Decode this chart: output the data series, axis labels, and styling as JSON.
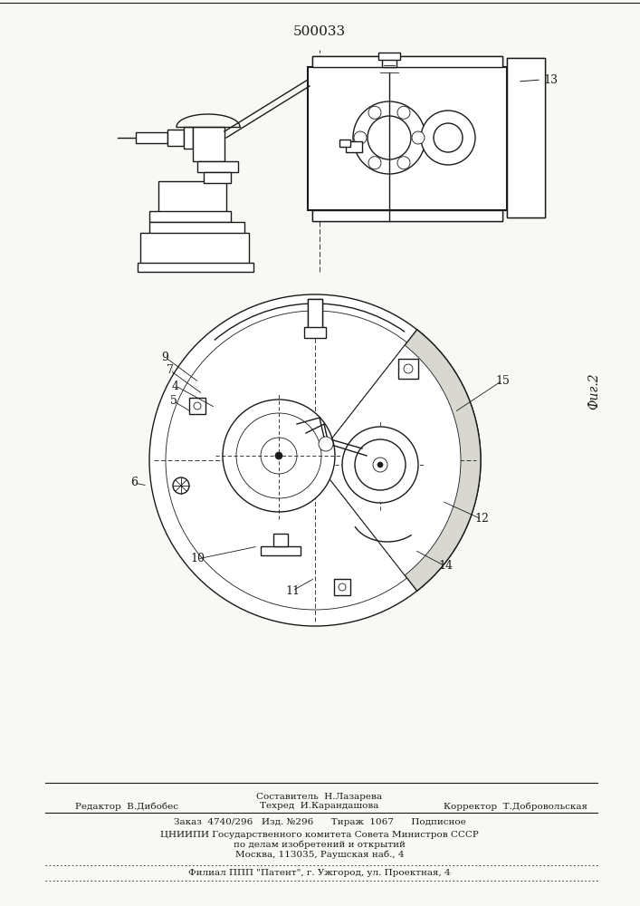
{
  "title": "500033",
  "bg_color": "#f8f8f4",
  "line_color": "#1a1a1a",
  "fig2_label": "Фиг.2",
  "footer": {
    "composer": "Составитель  Н.Лазарева",
    "editor_label": "Редактор",
    "editor": "В.Дибобес",
    "techred_label": "Техред",
    "techred": "И.Карандашова",
    "corrector_label": "Корректор",
    "corrector": "Т.Добровольская",
    "order": "Заказ  4740/296   Изд. №296      Тираж  1067      Подписное",
    "org1": "ЦНИИПИ Государственного комитета Совета Министров СССР",
    "org2": "по делам изобретений и открытий",
    "org3": "Москва, 113035, Раушская наб., 4",
    "branch": "Филиал ППП \"Патент\", г. Ужгород, ул. Проектная, 4"
  }
}
